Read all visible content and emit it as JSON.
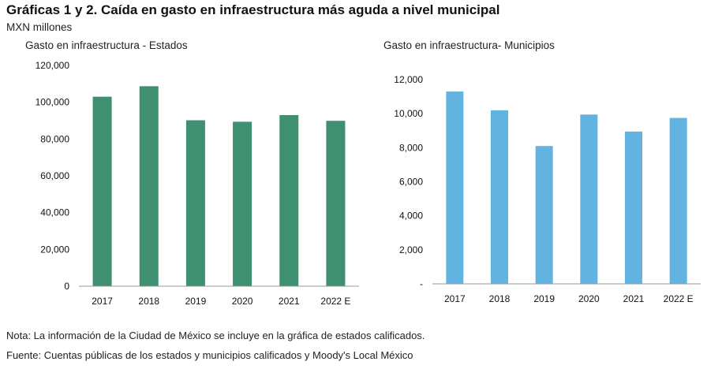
{
  "title": "Gráficas 1 y 2. Caída en gasto en infraestructura más aguda a nivel municipal",
  "subtitle": "MXN millones",
  "footnote_note": "Nota: La información de la Ciudad de México se incluye en la gráfica de estados calificados.",
  "footnote_source": "Fuente: Cuentas públicas de los estados y municipios calificados y Moody's Local México",
  "chart_data": [
    {
      "type": "bar",
      "title": "Gasto en infraestructura  - Estados",
      "categories": [
        "2017",
        "2018",
        "2019",
        "2020",
        "2021",
        "2022 E"
      ],
      "values": [
        103000,
        108700,
        90200,
        89400,
        93000,
        89900
      ],
      "ylim": [
        0,
        120000
      ],
      "yticks": [
        0,
        20000,
        40000,
        60000,
        80000,
        100000,
        120000
      ],
      "ytick_labels": [
        "0",
        "20,000",
        "40,000",
        "60,000",
        "80,000",
        "100,000",
        "120,000"
      ],
      "color": "#3f9070",
      "grid": false
    },
    {
      "type": "bar",
      "title": "Gasto en infraestructura- Municipios",
      "categories": [
        "2017",
        "2018",
        "2019",
        "2020",
        "2021",
        "2022 E"
      ],
      "values": [
        11300,
        10200,
        8100,
        9950,
        8950,
        9750
      ],
      "ylim": [
        0,
        12000
      ],
      "yticks": [
        0,
        2000,
        4000,
        6000,
        8000,
        10000,
        12000
      ],
      "ytick_labels": [
        "-",
        "2,000",
        "4,000",
        "6,000",
        "8,000",
        "10,000",
        "12,000"
      ],
      "color": "#63b3e1",
      "grid": false
    }
  ]
}
